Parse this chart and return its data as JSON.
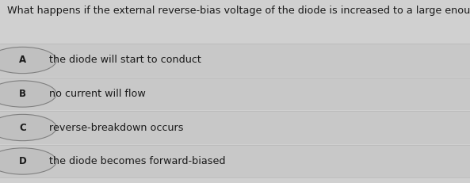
{
  "question": "What happens if the external reverse-bias voltage of the diode is increased to a large enough value?",
  "options": [
    {
      "label": "A",
      "text": "the diode will start to conduct"
    },
    {
      "label": "B",
      "text": "no current will flow"
    },
    {
      "label": "C",
      "text": "reverse-breakdown occurs"
    },
    {
      "label": "D",
      "text": "the diode becomes forward-biased"
    }
  ],
  "bg_color": "#d0d0d0",
  "option_bg_color": "#c8c8c8",
  "separator_color": "#b8b8b8",
  "text_color": "#1a1a1a",
  "circle_edge_color": "#808080",
  "circle_face_color": "#c0c0c0",
  "question_fontsize": 9.2,
  "option_fontsize": 9.2,
  "label_fontsize": 8.5
}
